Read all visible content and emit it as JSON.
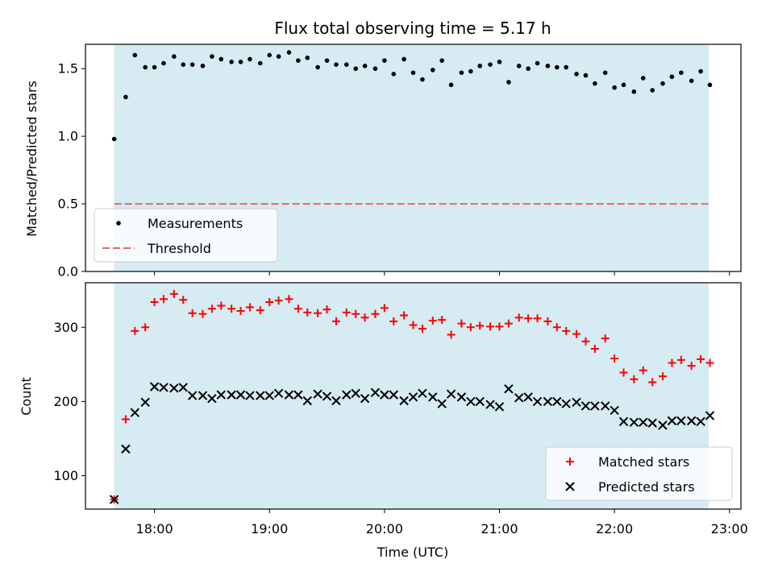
{
  "title": "Flux total observing time = 5.17 h",
  "chart_data": [
    {
      "type": "scatter",
      "panel": "top",
      "ylabel": "Matched/Predicted stars",
      "xlabel": "",
      "ylim": [
        0,
        1.68
      ],
      "yticks": [
        0.0,
        0.5,
        1.0,
        1.5
      ],
      "ytick_labels": [
        "0.0",
        "0.5",
        "1.0",
        "1.5"
      ],
      "series": [
        {
          "name": "Measurements",
          "marker": "dot",
          "color": "#000000",
          "x": [
            17.65,
            17.75,
            17.83,
            17.92,
            18.0,
            18.08,
            18.17,
            18.25,
            18.33,
            18.42,
            18.5,
            18.58,
            18.67,
            18.75,
            18.83,
            18.92,
            19.0,
            19.08,
            19.17,
            19.25,
            19.33,
            19.42,
            19.5,
            19.58,
            19.67,
            19.75,
            19.83,
            19.92,
            20.0,
            20.08,
            20.17,
            20.25,
            20.33,
            20.42,
            20.5,
            20.58,
            20.67,
            20.75,
            20.83,
            20.92,
            21.0,
            21.08,
            21.17,
            21.25,
            21.33,
            21.42,
            21.5,
            21.58,
            21.67,
            21.75,
            21.83,
            21.92,
            22.0,
            22.08,
            22.17,
            22.25,
            22.33,
            22.42,
            22.5,
            22.58,
            22.67,
            22.75,
            22.83
          ],
          "values": [
            0.98,
            1.29,
            1.6,
            1.51,
            1.51,
            1.54,
            1.59,
            1.53,
            1.53,
            1.52,
            1.59,
            1.57,
            1.55,
            1.55,
            1.57,
            1.54,
            1.6,
            1.59,
            1.62,
            1.56,
            1.58,
            1.51,
            1.56,
            1.53,
            1.53,
            1.5,
            1.52,
            1.5,
            1.56,
            1.46,
            1.57,
            1.47,
            1.42,
            1.49,
            1.56,
            1.38,
            1.47,
            1.48,
            1.52,
            1.53,
            1.55,
            1.4,
            1.52,
            1.5,
            1.54,
            1.52,
            1.51,
            1.51,
            1.46,
            1.45,
            1.39,
            1.47,
            1.36,
            1.38,
            1.33,
            1.43,
            1.34,
            1.39,
            1.44,
            1.47,
            1.41,
            1.48,
            1.38
          ]
        }
      ],
      "threshold": {
        "name": "Threshold",
        "value": 0.5,
        "color": "#ee6666",
        "style": "dashed"
      },
      "legend": {
        "placement": "lower-left",
        "entries": [
          "Measurements",
          "Threshold"
        ]
      }
    },
    {
      "type": "scatter",
      "panel": "bottom",
      "ylabel": "Count",
      "xlabel": "Time (UTC)",
      "xlim": [
        17.4,
        23.1
      ],
      "xticks": [
        18,
        19,
        20,
        21,
        22,
        23
      ],
      "xtick_labels": [
        "18:00",
        "19:00",
        "20:00",
        "21:00",
        "22:00",
        "23:00"
      ],
      "ylim": [
        55,
        360
      ],
      "yticks": [
        100,
        200,
        300
      ],
      "ytick_labels": [
        "100",
        "200",
        "300"
      ],
      "series": [
        {
          "name": "Matched stars",
          "marker": "plus",
          "color": "#ff0000",
          "x": [
            17.65,
            17.75,
            17.83,
            17.92,
            18.0,
            18.08,
            18.17,
            18.25,
            18.33,
            18.42,
            18.5,
            18.58,
            18.67,
            18.75,
            18.83,
            18.92,
            19.0,
            19.08,
            19.17,
            19.25,
            19.33,
            19.42,
            19.5,
            19.58,
            19.67,
            19.75,
            19.83,
            19.92,
            20.0,
            20.08,
            20.17,
            20.25,
            20.33,
            20.42,
            20.5,
            20.58,
            20.67,
            20.75,
            20.83,
            20.92,
            21.0,
            21.08,
            21.17,
            21.25,
            21.33,
            21.42,
            21.5,
            21.58,
            21.67,
            21.75,
            21.83,
            21.92,
            22.0,
            22.08,
            22.17,
            22.25,
            22.33,
            22.42,
            22.5,
            22.58,
            22.67,
            22.75,
            22.83
          ],
          "values": [
            68,
            176,
            295,
            300,
            334,
            338,
            345,
            337,
            319,
            318,
            325,
            329,
            325,
            322,
            327,
            323,
            334,
            336,
            338,
            325,
            320,
            319,
            324,
            308,
            320,
            318,
            313,
            318,
            326,
            308,
            316,
            303,
            298,
            309,
            310,
            290,
            305,
            300,
            302,
            301,
            301,
            305,
            313,
            312,
            312,
            308,
            300,
            295,
            291,
            281,
            271,
            285,
            258,
            239,
            230,
            242,
            226,
            234,
            252,
            256,
            248,
            257,
            252
          ]
        },
        {
          "name": "Predicted stars",
          "marker": "x",
          "color": "#000000",
          "x": [
            17.65,
            17.75,
            17.83,
            17.92,
            18.0,
            18.08,
            18.17,
            18.25,
            18.33,
            18.42,
            18.5,
            18.58,
            18.67,
            18.75,
            18.83,
            18.92,
            19.0,
            19.08,
            19.17,
            19.25,
            19.33,
            19.42,
            19.5,
            19.58,
            19.67,
            19.75,
            19.83,
            19.92,
            20.0,
            20.08,
            20.17,
            20.25,
            20.33,
            20.42,
            20.5,
            20.58,
            20.67,
            20.75,
            20.83,
            20.92,
            21.0,
            21.08,
            21.17,
            21.25,
            21.33,
            21.42,
            21.5,
            21.58,
            21.67,
            21.75,
            21.83,
            21.92,
            22.0,
            22.08,
            22.17,
            22.25,
            22.33,
            22.42,
            22.5,
            22.58,
            22.67,
            22.75,
            22.83
          ],
          "values": [
            68,
            136,
            185,
            199,
            220,
            219,
            218,
            219,
            208,
            208,
            204,
            209,
            209,
            209,
            208,
            208,
            208,
            211,
            209,
            209,
            201,
            210,
            207,
            201,
            209,
            211,
            204,
            212,
            209,
            209,
            201,
            206,
            211,
            206,
            197,
            210,
            206,
            200,
            200,
            196,
            193,
            217,
            205,
            206,
            200,
            200,
            200,
            197,
            199,
            194,
            194,
            194,
            188,
            173,
            172,
            172,
            171,
            168,
            174,
            174,
            174,
            173,
            181
          ]
        }
      ],
      "legend": {
        "placement": "lower-right",
        "entries": [
          "Matched stars",
          "Predicted stars"
        ]
      }
    }
  ],
  "observing_span": {
    "start": 17.65,
    "end": 22.82,
    "color": "#add8e6"
  }
}
